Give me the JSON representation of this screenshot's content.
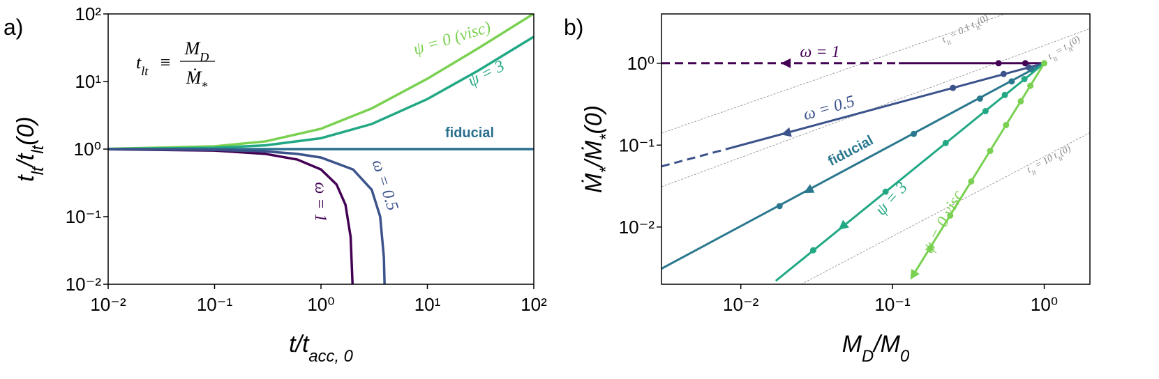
{
  "chart_data": [
    {
      "type": "line",
      "panel_label": "a)",
      "xscale": "log",
      "yscale": "log",
      "xlabel": [
        "t/t",
        {
          "sub": "acc, 0"
        }
      ],
      "ylabel": [
        "t",
        {
          "sub": "lt"
        },
        "/t",
        {
          "sub": "lt"
        },
        "(0)"
      ],
      "xlim": [
        0.01,
        100
      ],
      "ylim": [
        0.01,
        100
      ],
      "xticks": [
        {
          "value": 0.01,
          "label": "10⁻²"
        },
        {
          "value": 0.1,
          "label": "10⁻¹"
        },
        {
          "value": 1,
          "label": "10⁰"
        },
        {
          "value": 10,
          "label": "10¹"
        },
        {
          "value": 100,
          "label": "10²"
        }
      ],
      "yticks": [
        {
          "value": 0.01,
          "label": "10⁻²"
        },
        {
          "value": 0.1,
          "label": "10⁻¹"
        },
        {
          "value": 1,
          "label": "10⁰"
        },
        {
          "value": 10,
          "label": "10¹"
        },
        {
          "value": 100,
          "label": "10²"
        }
      ],
      "formula": {
        "lhs": [
          "t",
          {
            "sub": "lt"
          }
        ],
        "op": "≡",
        "num": [
          "M",
          {
            "sub": "D"
          }
        ],
        "den": [
          "Ṁ",
          {
            "sub": "*"
          }
        ]
      },
      "series": [
        {
          "name": "ψ = 0 (visc)",
          "color": "#7ad151",
          "x": [
            0.01,
            0.1,
            0.3,
            1,
            3,
            10,
            30,
            100
          ],
          "values": [
            1.01,
            1.1,
            1.3,
            2,
            4,
            11,
            31,
            101
          ]
        },
        {
          "name": "ψ = 3",
          "color": "#22a884",
          "x": [
            0.01,
            0.1,
            0.3,
            1,
            3,
            10,
            30,
            100
          ],
          "values": [
            1.0045,
            1.045,
            1.135,
            1.45,
            2.35,
            5.5,
            14.5,
            46
          ]
        },
        {
          "name": "fiducial",
          "color": "#2a6f8e",
          "x": [
            0.01,
            100
          ],
          "values": [
            1,
            1
          ]
        },
        {
          "name": "ω = 1",
          "color": "#440154",
          "x": [
            0.01,
            0.1,
            0.3,
            0.6,
            1,
            1.4,
            1.7,
            1.9,
            1.98
          ],
          "values": [
            0.995,
            0.95,
            0.85,
            0.7,
            0.5,
            0.3,
            0.15,
            0.05,
            0.01
          ]
        },
        {
          "name": "ω = 0.5",
          "color": "#3b528b",
          "x": [
            0.01,
            0.1,
            0.3,
            0.6,
            1,
            2,
            3,
            3.6,
            3.9,
            3.96
          ],
          "values": [
            0.9975,
            0.975,
            0.925,
            0.85,
            0.75,
            0.5,
            0.25,
            0.1,
            0.025,
            0.01
          ]
        }
      ]
    },
    {
      "type": "line",
      "panel_label": "b)",
      "xscale": "log",
      "yscale": "log",
      "xlabel": [
        "M",
        {
          "sub": "D"
        },
        "/M",
        {
          "sub": "0"
        }
      ],
      "ylabel": [
        "Ṁ",
        {
          "sub": "*"
        },
        "/Ṁ",
        {
          "sub": "*"
        },
        "(0)"
      ],
      "xlim": [
        0.003,
        2
      ],
      "ylim": [
        0.002,
        4
      ],
      "xticks": [
        {
          "value": 0.01,
          "label": "10⁻²"
        },
        {
          "value": 0.1,
          "label": "10⁻¹"
        },
        {
          "value": 1,
          "label": "10⁰"
        }
      ],
      "yticks": [
        {
          "value": 0.01,
          "label": "10⁻²"
        },
        {
          "value": 0.1,
          "label": "10⁻¹"
        },
        {
          "value": 1,
          "label": "10⁰"
        }
      ],
      "guides": [
        {
          "label": [
            "t",
            {
              "sub": "lt"
            },
            " = 0.1 t",
            {
              "sub": "lt"
            },
            "(0)"
          ],
          "x": [
            0.003,
            0.55
          ],
          "values": [
            0.14,
            4
          ]
        },
        {
          "label": [
            "t",
            {
              "sub": "lt"
            },
            " = t",
            {
              "sub": "lt"
            },
            "(0)"
          ],
          "x": [
            0.003,
            2
          ],
          "values": [
            0.031,
            2.65
          ]
        },
        {
          "label": [
            "t",
            {
              "sub": "lt"
            },
            " = 10 t",
            {
              "sub": "lt"
            },
            "(0)"
          ],
          "x": [
            0.025,
            2
          ],
          "values": [
            0.002,
            0.142
          ]
        }
      ],
      "series": [
        {
          "name": "ω = 1",
          "color": "#440154",
          "x": [
            0.11,
            1
          ],
          "values": [
            1,
            1
          ],
          "ext_x": [
            0.003,
            0.11
          ],
          "ext_values": [
            1,
            1
          ],
          "markers_x": [
            0.5,
            0.75
          ],
          "markers_values": [
            1,
            1
          ],
          "arrow_x": [
            0.02
          ],
          "arrow_values": [
            1
          ]
        },
        {
          "name": "ω = 0.5",
          "color": "#3b528b",
          "x": [
            0.0087,
            1
          ],
          "values": [
            0.093,
            1
          ],
          "ext_x": [
            0.003,
            0.0087
          ],
          "ext_values": [
            0.055,
            0.093
          ],
          "markers_x": [
            0.25,
            0.54,
            0.79
          ],
          "markers_values": [
            0.5,
            0.74,
            0.89
          ],
          "arrow_x": [
            0.02
          ],
          "arrow_values": [
            0.14
          ]
        },
        {
          "name": "fiducial",
          "color": "#2a788e",
          "x": [
            0.003,
            1
          ],
          "values": [
            0.0031,
            1
          ],
          "markers_x": [
            0.018,
            0.138,
            0.377,
            0.61,
            0.84
          ],
          "markers_values": [
            0.018,
            0.137,
            0.37,
            0.6,
            0.83
          ],
          "arrow_x": [
            0.028
          ],
          "arrow_values": [
            0.028
          ]
        },
        {
          "name": "ψ = 3",
          "color": "#22a884",
          "x": [
            0.017,
            1
          ],
          "values": [
            0.0022,
            1
          ],
          "markers_x": [
            0.03,
            0.09,
            0.224,
            0.41,
            0.55,
            0.74
          ],
          "markers_values": [
            0.0052,
            0.027,
            0.106,
            0.26,
            0.41,
            0.64
          ],
          "arrow_x": [
            0.047
          ],
          "arrow_values": [
            0.0102
          ]
        },
        {
          "name": "ψ = 0 visc",
          "color": "#7ad151",
          "x": [
            0.137,
            1
          ],
          "values": [
            0.0026,
            1
          ],
          "markers_x": [
            0.177,
            0.24,
            0.33,
            0.44,
            0.56,
            0.7,
            0.81,
            1
          ],
          "markers_values": [
            0.0055,
            0.0138,
            0.036,
            0.085,
            0.176,
            0.343,
            0.53,
            1
          ],
          "arrow_x": [
            0.137
          ],
          "arrow_values": [
            0.0026
          ]
        }
      ]
    }
  ]
}
